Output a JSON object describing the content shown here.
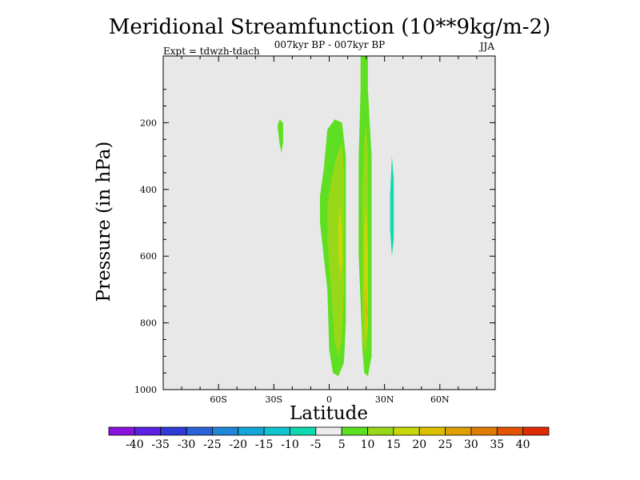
{
  "chart_data": {
    "type": "heatmap",
    "title": "Meridional Streamfunction (10**9kg/m-2)",
    "subtitle": "007kyr BP - 007kyr BP",
    "left_label": "Expt = tdwzh-tdach",
    "right_label": "JJA",
    "xlabel": "Latitude",
    "ylabel": "Pressure (in hPa)",
    "x_range": [
      -90,
      90
    ],
    "y_range": [
      0,
      1000
    ],
    "x_ticks": [
      {
        "value": -60,
        "label": "60S"
      },
      {
        "value": -30,
        "label": "30S"
      },
      {
        "value": 0,
        "label": "0"
      },
      {
        "value": 30,
        "label": "30N"
      },
      {
        "value": 60,
        "label": "60N"
      }
    ],
    "y_ticks": [
      {
        "value": 200,
        "label": "200"
      },
      {
        "value": 400,
        "label": "400"
      },
      {
        "value": 600,
        "label": "600"
      },
      {
        "value": 800,
        "label": "800"
      },
      {
        "value": 1000,
        "label": "1000"
      }
    ],
    "colorbar": {
      "labels": [
        "-40",
        "-35",
        "-30",
        "-25",
        "-20",
        "-15",
        "-10",
        "-5",
        "5",
        "10",
        "15",
        "20",
        "25",
        "30",
        "35",
        "40"
      ],
      "colors": [
        "#8a13e0",
        "#5a22e0",
        "#2f3ad8",
        "#2a62d8",
        "#1f86d8",
        "#14a6d8",
        "#10c4d2",
        "#10d8b0",
        "#ebebeb",
        "#5fdf22",
        "#98d818",
        "#c7d80a",
        "#dcc000",
        "#e0a000",
        "#e27c00",
        "#e25400",
        "#e02a00"
      ]
    },
    "features": [
      {
        "name": "cell-a-outer",
        "level": "5 to 10",
        "color": "#5fdf22",
        "points": [
          [
            -1,
            220
          ],
          [
            3,
            190
          ],
          [
            7,
            200
          ],
          [
            9,
            300
          ],
          [
            9,
            500
          ],
          [
            9,
            800
          ],
          [
            8,
            920
          ],
          [
            5,
            960
          ],
          [
            2,
            950
          ],
          [
            0,
            880
          ],
          [
            -1,
            700
          ],
          [
            -3,
            600
          ],
          [
            -5,
            500
          ],
          [
            -5,
            420
          ],
          [
            -3,
            340
          ],
          [
            -2,
            280
          ]
        ]
      },
      {
        "name": "cell-a-mid",
        "level": "10 to 15",
        "color": "#98d818",
        "points": [
          [
            4,
            300
          ],
          [
            7,
            260
          ],
          [
            8,
            350
          ],
          [
            8,
            700
          ],
          [
            7,
            850
          ],
          [
            5,
            900
          ],
          [
            3,
            860
          ],
          [
            1,
            700
          ],
          [
            -1,
            550
          ],
          [
            -1,
            450
          ],
          [
            1,
            380
          ]
        ]
      },
      {
        "name": "cell-a-core",
        "level": "15 to 20",
        "color": "#c7d80a",
        "points": [
          [
            6,
            450
          ],
          [
            7,
            520
          ],
          [
            7,
            620
          ],
          [
            6,
            660
          ],
          [
            5,
            600
          ],
          [
            5,
            500
          ]
        ]
      },
      {
        "name": "cell-b-outer",
        "level": "5 to 10",
        "color": "#5fdf22",
        "points": [
          [
            17,
            -30
          ],
          [
            21,
            -30
          ],
          [
            21,
            100
          ],
          [
            22,
            200
          ],
          [
            23,
            300
          ],
          [
            23,
            600
          ],
          [
            23,
            800
          ],
          [
            23,
            900
          ],
          [
            21,
            960
          ],
          [
            19,
            950
          ],
          [
            18,
            880
          ],
          [
            16,
            600
          ],
          [
            16,
            300
          ],
          [
            17,
            100
          ]
        ]
      },
      {
        "name": "cell-b-mid",
        "level": "10 to 15",
        "color": "#98d818",
        "points": [
          [
            19,
            260
          ],
          [
            20,
            200
          ],
          [
            21,
            300
          ],
          [
            21,
            800
          ],
          [
            20,
            900
          ],
          [
            18,
            850
          ],
          [
            18,
            600
          ],
          [
            18,
            400
          ]
        ]
      },
      {
        "name": "cell-b-core",
        "level": "15 to 20",
        "color": "#c7d80a",
        "points": [
          [
            19,
            520
          ],
          [
            20,
            450
          ],
          [
            21,
            600
          ],
          [
            21,
            800
          ],
          [
            20,
            850
          ],
          [
            19,
            700
          ]
        ]
      },
      {
        "name": "cell-b-peak",
        "level": "20 to 25",
        "color": "#dcc000",
        "points": [
          [
            19.6,
            700
          ],
          [
            20.3,
            670
          ],
          [
            20.8,
            760
          ],
          [
            20.4,
            820
          ],
          [
            19.8,
            800
          ]
        ]
      },
      {
        "name": "cell-b-spot",
        "level": "25 to 30",
        "color": "#e0a000",
        "points": [
          [
            20,
            750
          ],
          [
            20.6,
            760
          ],
          [
            20.3,
            800
          ]
        ]
      },
      {
        "name": "blob-30s",
        "level": "5 to 10",
        "color": "#5fdf22",
        "points": [
          [
            -27,
            190
          ],
          [
            -25,
            200
          ],
          [
            -25,
            260
          ],
          [
            -26,
            290
          ],
          [
            -27,
            260
          ],
          [
            -28,
            210
          ]
        ]
      },
      {
        "name": "blob-35n",
        "level": "-10 to -5",
        "color": "#10d8b0",
        "points": [
          [
            34,
            300
          ],
          [
            35,
            370
          ],
          [
            35,
            550
          ],
          [
            34,
            600
          ],
          [
            33,
            520
          ],
          [
            33,
            420
          ]
        ]
      }
    ]
  }
}
